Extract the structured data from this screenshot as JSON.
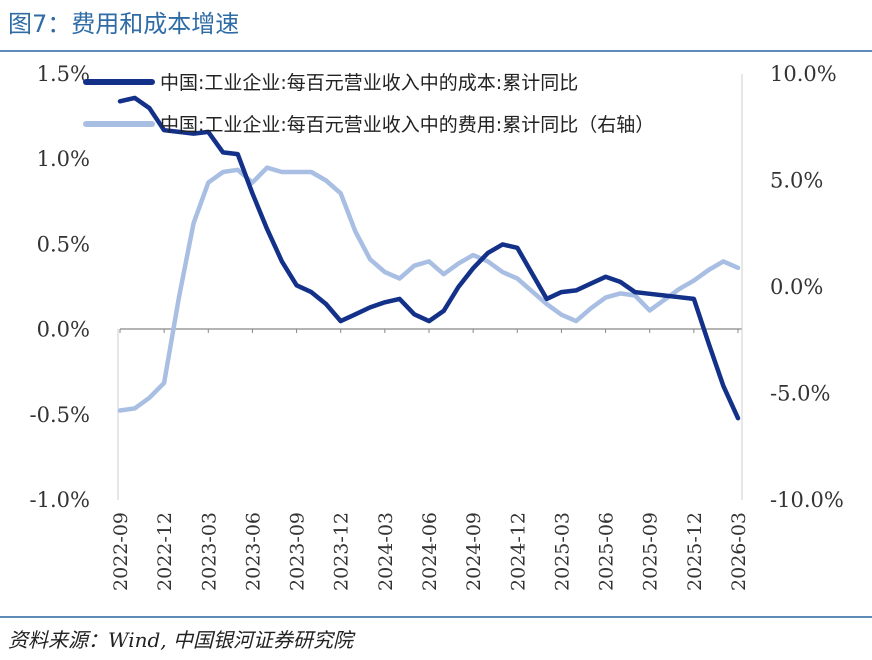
{
  "figure_title": "图7：费用和成本增速",
  "source": "资料来源：Wind, 中国银河证券研究院",
  "colors": {
    "cost": "#14318a",
    "expense": "#a9bee3",
    "axis": "#888888",
    "title": "#2f6ca6"
  },
  "chart_data": {
    "type": "line",
    "title": "",
    "xlabel": "",
    "ylabel": "",
    "ylim_left": [
      -1.0,
      1.5
    ],
    "ylim_right": [
      -10.0,
      10.0
    ],
    "yticks_left": [
      "1.5%",
      "1.0%",
      "0.5%",
      "0.0%",
      "-0.5%",
      "-1.0%"
    ],
    "yticks_right": [
      "10.0%",
      "5.0%",
      "0.0%",
      "-5.0%",
      "-10.0%"
    ],
    "xtick_labels": [
      "2022-09",
      "2022-12",
      "2023-03",
      "2023-06",
      "2023-09",
      "2023-12",
      "2024-03",
      "2024-06",
      "2024-09",
      "2024-12",
      "2025-03",
      "2025-06",
      "2025-09",
      "2025-12",
      "2026-03"
    ],
    "grid": false,
    "legend_position": "top",
    "x": [
      "2022-09",
      "2022-10",
      "2022-11",
      "2022-12",
      "2023-01",
      "2023-02",
      "2023-03",
      "2023-04",
      "2023-05",
      "2023-06",
      "2023-07",
      "2023-08",
      "2023-09",
      "2023-10",
      "2023-11",
      "2023-12",
      "2024-01",
      "2024-02",
      "2024-03",
      "2024-04",
      "2024-05",
      "2024-06",
      "2024-07",
      "2024-08",
      "2024-09",
      "2024-10",
      "2024-11",
      "2024-12",
      "2025-01",
      "2025-02",
      "2025-03",
      "2025-04",
      "2025-05",
      "2025-06",
      "2025-07",
      "2025-08",
      "2025-09",
      "2025-10",
      "2025-11",
      "2025-12",
      "2026-01",
      "2026-02",
      "2026-03"
    ],
    "series": [
      {
        "name": "中国:工业企业:每百元营业收入中的成本:累计同比",
        "axis": "left",
        "values": [
          1.34,
          1.36,
          1.3,
          1.17,
          1.16,
          1.15,
          1.16,
          1.04,
          1.03,
          0.8,
          0.59,
          0.4,
          0.26,
          0.22,
          0.15,
          0.05,
          0.09,
          0.13,
          0.16,
          0.18,
          0.09,
          0.05,
          0.11,
          0.25,
          0.36,
          0.45,
          0.5,
          0.48,
          0.33,
          0.18,
          0.22,
          0.23,
          0.27,
          0.31,
          0.28,
          0.22,
          0.21,
          0.2,
          0.19,
          0.18,
          -0.08,
          -0.33,
          -0.52
        ]
      },
      {
        "name": "中国:工业企业:每百元营业收入中的费用:累计同比（右轴）",
        "axis": "right",
        "values": [
          -5.8,
          -5.7,
          -5.2,
          -4.5,
          -0.5,
          3.0,
          4.9,
          5.4,
          5.5,
          4.9,
          5.6,
          5.4,
          5.4,
          5.4,
          5.0,
          4.4,
          2.6,
          1.3,
          0.7,
          0.4,
          1.0,
          1.2,
          0.6,
          1.1,
          1.5,
          1.2,
          0.7,
          0.4,
          -0.2,
          -0.8,
          -1.3,
          -1.6,
          -1.0,
          -0.5,
          -0.3,
          -0.4,
          -1.1,
          -0.6,
          -0.1,
          0.3,
          0.8,
          1.2,
          0.9
        ]
      }
    ]
  }
}
